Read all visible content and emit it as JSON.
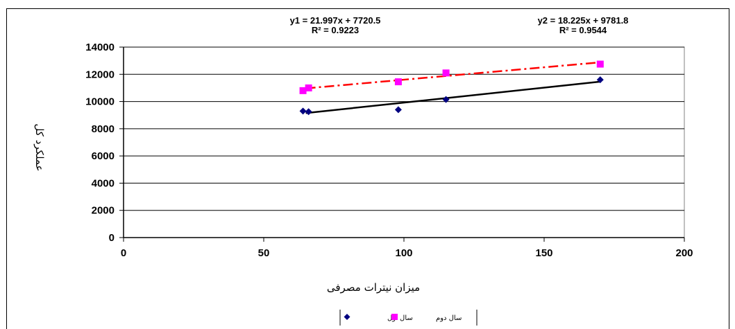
{
  "chart_data": {
    "type": "scatter",
    "xlabel": "میزان نیترات مصرفی",
    "ylabel": "عملکرد کل",
    "xlim": [
      0,
      200
    ],
    "ylim": [
      0,
      14000
    ],
    "xticks": [
      "0",
      "50",
      "100",
      "150",
      "200"
    ],
    "yticks": [
      "0",
      "2000",
      "4000",
      "6000",
      "8000",
      "10000",
      "12000",
      "14000"
    ],
    "grid": "horizontal",
    "legend_position": "bottom",
    "series": [
      {
        "name": "سال اول",
        "color": "#000080",
        "marker": "diamond",
        "x": [
          64,
          66,
          98,
          115,
          170
        ],
        "y": [
          9300,
          9250,
          9400,
          10150,
          11600
        ],
        "trendline": {
          "equation": "y1 = 21.997x + 7720.5",
          "r2": "R² = 0.9223",
          "slope": 21.997,
          "intercept": 7720.5,
          "color": "#000000",
          "style": "solid",
          "x_range": [
            65,
            170
          ]
        }
      },
      {
        "name": "سال دوم",
        "color": "#ff00ff",
        "marker": "square",
        "x": [
          64,
          66,
          98,
          115,
          170
        ],
        "y": [
          10800,
          11000,
          11450,
          12100,
          12750
        ],
        "trendline": {
          "equation": "y2 = 18.225x + 9781.8",
          "r2": "R² = 0.9544",
          "slope": 18.225,
          "intercept": 9781.8,
          "color": "#ff0000",
          "style": "dash-dot",
          "x_range": [
            65,
            170
          ]
        }
      }
    ]
  }
}
